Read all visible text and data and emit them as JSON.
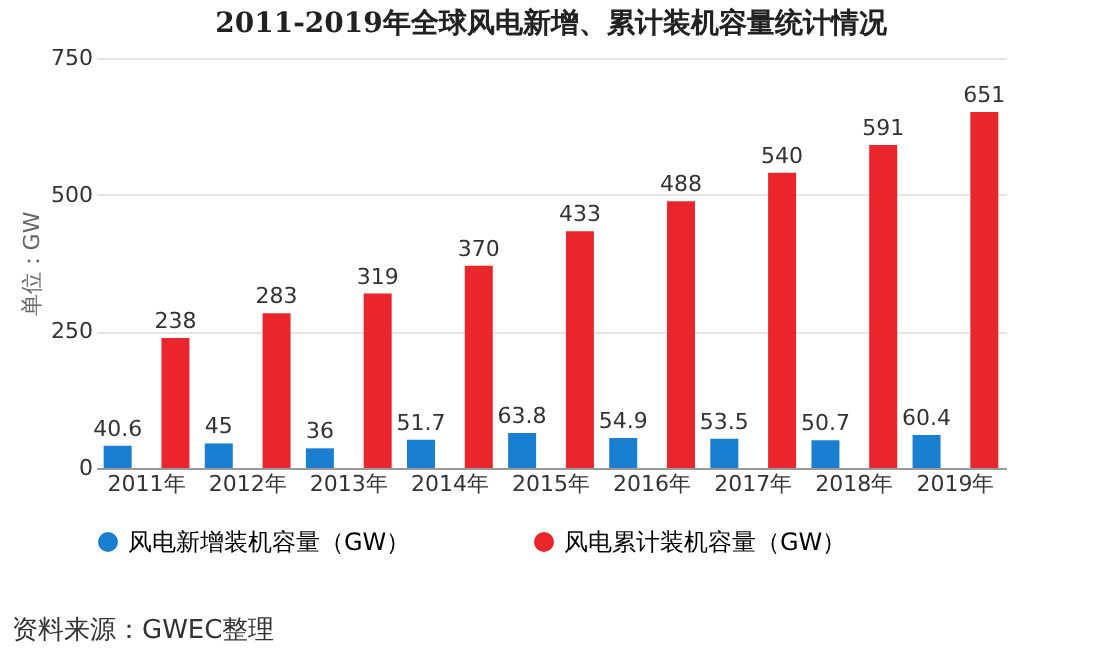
{
  "chart_data": {
    "type": "bar",
    "title": "2011-2019年全球风电新增、累计装机容量统计情况",
    "ylabel": "单位：GW",
    "categories": [
      "2011年",
      "2012年",
      "2013年",
      "2014年",
      "2015年",
      "2016年",
      "2017年",
      "2018年",
      "2019年"
    ],
    "series": [
      {
        "name": "风电新增装机容量（GW）",
        "color": "#1a7fd0",
        "values": [
          40.6,
          45,
          36,
          51.7,
          63.8,
          54.9,
          53.5,
          50.7,
          60.4
        ]
      },
      {
        "name": "风电累计装机容量（GW）",
        "color": "#e8262c",
        "values": [
          238,
          283,
          319,
          370,
          433,
          488,
          540,
          591,
          651
        ]
      }
    ],
    "ylim": [
      0,
      750
    ],
    "yticks": [
      0,
      250,
      500,
      750
    ],
    "grid": "y",
    "legend": "bottom",
    "data_labels": true,
    "annotations": [
      "资料来源：GWEC整理"
    ]
  }
}
